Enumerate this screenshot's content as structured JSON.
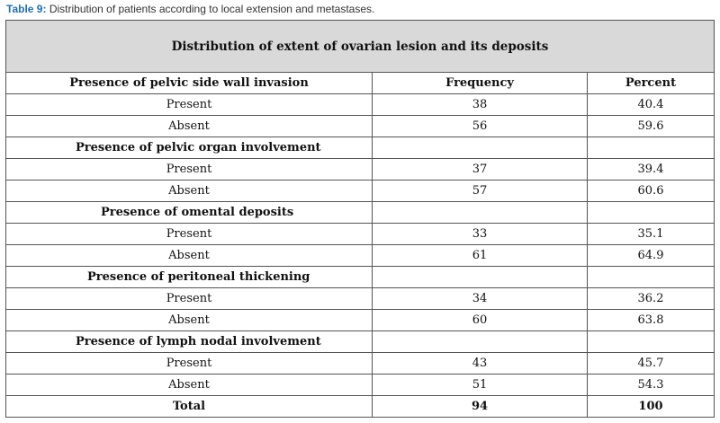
{
  "caption": {
    "label": "Table 9:",
    "text": "Distribution of patients according to local extension and metastases."
  },
  "table": {
    "title": "Distribution of extent of ovarian lesion and its deposits",
    "columns": [
      "Frequency",
      "Percent"
    ],
    "sections": [
      {
        "label": "Presence of pelvic side wall invasion",
        "rows": [
          {
            "label": "Present",
            "frequency": "38",
            "percent": "40.4"
          },
          {
            "label": "Absent",
            "frequency": "56",
            "percent": "59.6"
          }
        ]
      },
      {
        "label": "Presence of pelvic organ involvement",
        "rows": [
          {
            "label": "Present",
            "frequency": "37",
            "percent": "39.4"
          },
          {
            "label": "Absent",
            "frequency": "57",
            "percent": "60.6"
          }
        ]
      },
      {
        "label": "Presence of omental deposits",
        "rows": [
          {
            "label": "Present",
            "frequency": "33",
            "percent": "35.1"
          },
          {
            "label": "Absent",
            "frequency": "61",
            "percent": "64.9"
          }
        ]
      },
      {
        "label": "Presence of peritoneal thickening",
        "rows": [
          {
            "label": "Present",
            "frequency": "34",
            "percent": "36.2"
          },
          {
            "label": "Absent",
            "frequency": "60",
            "percent": "63.8"
          }
        ]
      },
      {
        "label": "Presence of lymph nodal involvement",
        "rows": [
          {
            "label": "Present",
            "frequency": "43",
            "percent": "45.7"
          },
          {
            "label": "Absent",
            "frequency": "51",
            "percent": "54.3"
          }
        ]
      }
    ],
    "total": {
      "label": "Total",
      "frequency": "94",
      "percent": "100"
    }
  }
}
